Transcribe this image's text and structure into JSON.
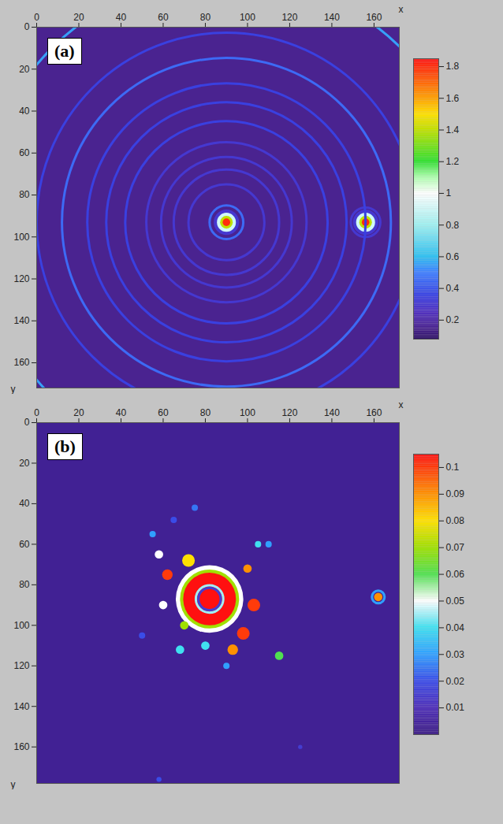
{
  "chart_data": [
    {
      "type": "heatmap",
      "panel_label": "(a)",
      "x_label": "x",
      "y_label": "y",
      "xlim": [
        0,
        172
      ],
      "ylim": [
        0,
        172
      ],
      "xticks": [
        0,
        20,
        40,
        60,
        80,
        100,
        120,
        140,
        160
      ],
      "yticks": [
        0,
        20,
        40,
        60,
        80,
        100,
        120,
        140,
        160
      ],
      "background_value": 0.15,
      "colorbar": {
        "range": [
          0.08,
          1.85
        ],
        "ticks": [
          0.2,
          0.4,
          0.6,
          0.8,
          1,
          1.2,
          1.4,
          1.6,
          1.8
        ],
        "stops": [
          {
            "value": 0.08,
            "color": "#2a0d63"
          },
          {
            "value": 0.15,
            "color": "#4a2390"
          },
          {
            "value": 0.25,
            "color": "#5030c0"
          },
          {
            "value": 0.35,
            "color": "#3a40e0"
          },
          {
            "value": 0.5,
            "color": "#3f7fff"
          },
          {
            "value": 0.6,
            "color": "#2fc0f0"
          },
          {
            "value": 0.8,
            "color": "#a0f0f0"
          },
          {
            "value": 1,
            "color": "#ffffff"
          },
          {
            "value": 1.1,
            "color": "#b0ffb0"
          },
          {
            "value": 1.2,
            "color": "#30e030"
          },
          {
            "value": 1.4,
            "color": "#c0e000"
          },
          {
            "value": 1.5,
            "color": "#ffe000"
          },
          {
            "value": 1.6,
            "color": "#ffa000"
          },
          {
            "value": 1.85,
            "color": "#ff1010"
          }
        ]
      },
      "blobs": [
        {
          "x": 90,
          "y": 93,
          "r": 6,
          "value": 0.3
        },
        {
          "x": 90,
          "y": 93,
          "r": 4.5,
          "value": 0.9
        },
        {
          "x": 90,
          "y": 93,
          "r": 3,
          "value": 1.4
        },
        {
          "x": 90,
          "y": 93,
          "r": 1.8,
          "value": 1.8
        },
        {
          "x": 156,
          "y": 93,
          "r": 6,
          "value": 0.3
        },
        {
          "x": 156,
          "y": 93,
          "r": 4.5,
          "value": 0.9
        },
        {
          "x": 156,
          "y": 93,
          "r": 3,
          "value": 1.4
        },
        {
          "x": 156,
          "y": 93,
          "r": 1.8,
          "value": 1.8
        }
      ],
      "rings": [
        {
          "x": 90,
          "y": 93,
          "r": 8,
          "value": 0.45
        },
        {
          "x": 156,
          "y": 93,
          "r": 7,
          "value": 0.3
        },
        {
          "x": 90,
          "y": 93,
          "r": 18,
          "value": 0.3
        },
        {
          "x": 90,
          "y": 93,
          "r": 25,
          "value": 0.3
        },
        {
          "x": 90,
          "y": 93,
          "r": 31,
          "value": 0.3
        },
        {
          "x": 90,
          "y": 93,
          "r": 38,
          "value": 0.3
        },
        {
          "x": 90,
          "y": 93,
          "r": 48,
          "value": 0.35
        },
        {
          "x": 90,
          "y": 93,
          "r": 57,
          "value": 0.35
        },
        {
          "x": 90,
          "y": 93,
          "r": 66,
          "value": 0.35
        },
        {
          "x": 90,
          "y": 93,
          "r": 78,
          "value": 0.45
        },
        {
          "x": 90,
          "y": 93,
          "r": 90,
          "value": 0.35
        },
        {
          "x": 90,
          "y": 93,
          "r": 117,
          "value": 0.55
        }
      ]
    },
    {
      "type": "heatmap",
      "panel_label": "(b)",
      "x_label": "x",
      "y_label": "y",
      "xlim": [
        0,
        172
      ],
      "ylim": [
        0,
        178
      ],
      "xticks": [
        0,
        20,
        40,
        60,
        80,
        100,
        120,
        140,
        160
      ],
      "yticks": [
        0,
        20,
        40,
        60,
        80,
        100,
        120,
        140,
        160
      ],
      "background_value": 0.003,
      "colorbar": {
        "range": [
          0,
          0.105
        ],
        "ticks": [
          0.01,
          0.02,
          0.03,
          0.04,
          0.05,
          0.06,
          0.07,
          0.08,
          0.09,
          0.1
        ],
        "stops": [
          {
            "value": 0,
            "color": "#3c1c85"
          },
          {
            "value": 0.01,
            "color": "#4d2db8"
          },
          {
            "value": 0.02,
            "color": "#3a4ce8"
          },
          {
            "value": 0.03,
            "color": "#30a0ff"
          },
          {
            "value": 0.04,
            "color": "#40e0f0"
          },
          {
            "value": 0.05,
            "color": "#ffffff"
          },
          {
            "value": 0.06,
            "color": "#50e050"
          },
          {
            "value": 0.07,
            "color": "#a0e000"
          },
          {
            "value": 0.08,
            "color": "#ffe000"
          },
          {
            "value": 0.09,
            "color": "#ff9000"
          },
          {
            "value": 0.105,
            "color": "#ff1010"
          }
        ]
      },
      "blobs": [
        {
          "x": 82,
          "y": 87,
          "r": 16,
          "value": 0.05
        },
        {
          "x": 82,
          "y": 87,
          "r": 14,
          "value": 0.07
        },
        {
          "x": 82,
          "y": 87,
          "r": 12.5,
          "value": 0.105
        },
        {
          "x": 82,
          "y": 87,
          "r": 4,
          "value": 0.105
        },
        {
          "x": 72,
          "y": 68,
          "r": 3,
          "value": 0.08
        },
        {
          "x": 62,
          "y": 75,
          "r": 2.5,
          "value": 0.1
        },
        {
          "x": 100,
          "y": 72,
          "r": 2,
          "value": 0.09
        },
        {
          "x": 103,
          "y": 90,
          "r": 3,
          "value": 0.1
        },
        {
          "x": 98,
          "y": 104,
          "r": 3,
          "value": 0.1
        },
        {
          "x": 93,
          "y": 112,
          "r": 2.5,
          "value": 0.09
        },
        {
          "x": 70,
          "y": 100,
          "r": 2,
          "value": 0.07
        },
        {
          "x": 60,
          "y": 90,
          "r": 2,
          "value": 0.05
        },
        {
          "x": 115,
          "y": 115,
          "r": 2,
          "value": 0.06
        },
        {
          "x": 80,
          "y": 110,
          "r": 2,
          "value": 0.04
        },
        {
          "x": 58,
          "y": 65,
          "r": 2,
          "value": 0.05
        },
        {
          "x": 68,
          "y": 112,
          "r": 2,
          "value": 0.04
        },
        {
          "x": 55,
          "y": 55,
          "r": 1.5,
          "value": 0.03
        },
        {
          "x": 65,
          "y": 48,
          "r": 1.5,
          "value": 0.02
        },
        {
          "x": 75,
          "y": 42,
          "r": 1.5,
          "value": 0.025
        },
        {
          "x": 50,
          "y": 105,
          "r": 1.5,
          "value": 0.02
        },
        {
          "x": 110,
          "y": 60,
          "r": 1.5,
          "value": 0.03
        },
        {
          "x": 105,
          "y": 60,
          "r": 1.5,
          "value": 0.04
        },
        {
          "x": 90,
          "y": 120,
          "r": 1.5,
          "value": 0.03
        },
        {
          "x": 162,
          "y": 86,
          "r": 2,
          "value": 0.09
        },
        {
          "x": 125,
          "y": 160,
          "r": 1,
          "value": 0.015
        },
        {
          "x": 58,
          "y": 176,
          "r": 1.2,
          "value": 0.02
        }
      ],
      "rings": [
        {
          "x": 82,
          "y": 87,
          "r": 6.5,
          "value": 0.045
        },
        {
          "x": 82,
          "y": 87,
          "r": 5.3,
          "value": 0.015
        },
        {
          "x": 162,
          "y": 86,
          "r": 3,
          "value": 0.03
        }
      ]
    }
  ]
}
